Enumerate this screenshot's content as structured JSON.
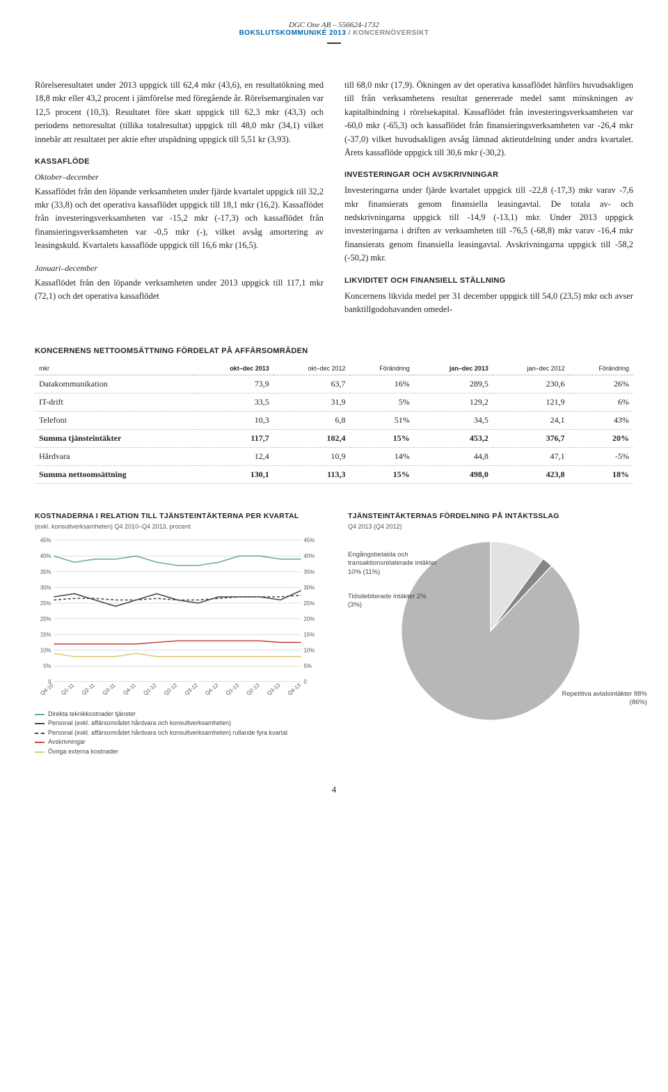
{
  "header": {
    "company": "DGC One AB – 556624-1732",
    "subtitle_blue": "BOKSLUTSKOMMUNIKÉ 2013",
    "subtitle_grey": " / KONCERNÖVERSIKT"
  },
  "col1": {
    "p1": "Rörelseresultatet under 2013 uppgick till 62,4 mkr (43,6), en resultatökning med 18,8 mkr eller 43,2 procent i jämförelse med föregående år. Rörelsemarginalen var 12,5 procent (10,3). Resultatet före skatt uppgick till 62,3 mkr (43,3) och periodens nettoresultat (tillika totalresultat) uppgick till 48,0 mkr (34,1) vilket innebär att resultatet per aktie efter utspädning uppgick till 5,51 kr (3,93).",
    "h1": "KASSAFLÖDE",
    "sub1": "Oktober–december",
    "p2": "Kassaflödet från den löpande verksamheten under fjärde kvartalet uppgick till 32,2 mkr (33,8) och det operativa kassaflödet uppgick till 18,1 mkr (16,2). Kassaflödet från investeringsverksamheten var -15,2 mkr (-17,3) och kassaflödet från finansieringsverksamheten var -0,5 mkr (-), vilket avsåg amortering av leasingskuld. Kvartalets kassaflöde uppgick till 16,6 mkr (16,5).",
    "sub2": "Januari–december",
    "p3": "Kassaflödet från den löpande verksamheten under 2013 uppgick till 117,1 mkr (72,1) och det operativa kassaflödet"
  },
  "col2": {
    "p1": "till 68,0 mkr (17,9). Ökningen av det operativa kassaflödet hänförs huvudsakligen till från verksamhetens resultat genererade medel samt minskningen av kapitalbindning i rörelsekapital. Kassaflödet från investeringsverksamheten var -60,0 mkr (-65,3) och kassaflödet från finansieringsverksamheten var -26,4 mkr (-37,0) vilket huvudsakligen avsåg lämnad aktieutdelning under andra kvartalet. Årets kassaflöde uppgick till 30,6 mkr (-30,2).",
    "h1": "INVESTERINGAR OCH AVSKRIVNINGAR",
    "p2": "Investeringarna under fjärde kvartalet uppgick till -22,8 (-17,3) mkr varav -7,6 mkr finansierats genom finansiella leasingavtal. De totala av- och nedskrivningarna uppgick till -14,9 (-13,1) mkr. Under 2013 uppgick investeringarna i driften av verksamheten till -76,5 (-68,8) mkr varav -16,4 mkr finansierats genom finansiella leasingavtal. Avskrivningarna uppgick till -58,2 (-50,2) mkr.",
    "h2": "LIKVIDITET OCH FINANSIELL STÄLLNING",
    "p3": "Koncernens likvida medel per 31 december uppgick till 54,0 (23,5) mkr och avser banktillgodohavanden omedel-"
  },
  "table": {
    "title": "KONCERNENS NETTOOMSÄTTNING FÖRDELAT PÅ AFFÄRSOMRÅDEN",
    "headers": [
      "mkr",
      "okt–dec 2013",
      "okt–dec 2012",
      "Förändring",
      "jan–dec 2013",
      "jan–dec 2012",
      "Förändring"
    ],
    "rows": [
      {
        "cells": [
          "Datakommunikation",
          "73,9",
          "63,7",
          "16%",
          "289,5",
          "230,6",
          "26%"
        ],
        "bold": false
      },
      {
        "cells": [
          "IT-drift",
          "33,5",
          "31,9",
          "5%",
          "129,2",
          "121,9",
          "6%"
        ],
        "bold": false
      },
      {
        "cells": [
          "Telefoni",
          "10,3",
          "6,8",
          "51%",
          "34,5",
          "24,1",
          "43%"
        ],
        "bold": false
      },
      {
        "cells": [
          "Summa tjänsteintäkter",
          "117,7",
          "102,4",
          "15%",
          "453,2",
          "376,7",
          "20%"
        ],
        "bold": true
      },
      {
        "cells": [
          "Hårdvara",
          "12,4",
          "10,9",
          "14%",
          "44,8",
          "47,1",
          "-5%"
        ],
        "bold": false
      },
      {
        "cells": [
          "Summa nettoomsättning",
          "130,1",
          "113,3",
          "15%",
          "498,0",
          "423,8",
          "18%"
        ],
        "bold": true
      }
    ]
  },
  "line_chart": {
    "title": "KOSTNADERNA I RELATION TILL TJÄNSTEINTÄKTERNA PER KVARTAL",
    "subtitle": "(exkl. konsultverksamheten) Q4 2010–Q4 2013, procent",
    "y_ticks": [
      "45%",
      "40%",
      "35%",
      "30%",
      "25%",
      "20%",
      "15%",
      "10%",
      "5%",
      "0"
    ],
    "x_labels": [
      "Q4-10",
      "Q1-11",
      "Q2-11",
      "Q3-11",
      "Q4-11",
      "Q1-12",
      "Q2-12",
      "Q3-12",
      "Q4-12",
      "Q1-13",
      "Q2-13",
      "Q3-13",
      "Q4-13"
    ],
    "ymax": 45,
    "series": [
      {
        "name": "Direkta teknikkostnader tjänster",
        "color": "#6aa9a0",
        "dash": "none",
        "values": [
          40,
          38,
          39,
          39,
          40,
          38,
          37,
          37,
          38,
          40,
          40,
          39,
          39
        ]
      },
      {
        "name": "Personal (exkl. affärsområdet hårdvara och konsultverksamheten)",
        "color": "#444444",
        "dash": "none",
        "values": [
          27,
          28,
          26,
          24,
          26,
          28,
          26,
          25,
          27,
          27,
          27,
          26,
          29
        ]
      },
      {
        "name": "Personal (exkl. affärsområdet hårdvara och konsultverksamheten) rullande fyra kvartal",
        "color": "#444444",
        "dash": "4,3",
        "values": [
          26,
          26.5,
          26.5,
          26,
          26,
          26.5,
          26,
          26,
          26.5,
          27,
          27,
          27,
          27.5
        ]
      },
      {
        "name": "Avskrivningar",
        "color": "#c6433f",
        "dash": "none",
        "values": [
          12,
          12,
          12,
          12,
          12,
          12.5,
          13,
          13,
          13,
          13,
          13,
          12.5,
          12.5
        ]
      },
      {
        "name": "Övriga externa kostnader",
        "color": "#d9ca77",
        "dash": "none",
        "values": [
          9,
          8,
          8,
          8,
          9,
          8,
          8,
          8,
          8,
          8,
          8,
          8,
          8
        ]
      }
    ],
    "grid_color": "#bbbbbb",
    "axis_font": 8
  },
  "pie_chart": {
    "title": "TJÄNSTEINTÄKTERNAS FÖRDELNING PÅ INTÄKTSSLAG",
    "subtitle": "Q4 2013 (Q4 2012)",
    "slices": [
      {
        "label": "Repetitiva avtalsintäkter 88% (86%)",
        "value": 88,
        "color": "#b7b7b7"
      },
      {
        "label": "Engångsbetalda och transaktionsrelaterade intäkter 10% (11%)",
        "value": 10,
        "color": "#e2e2e2"
      },
      {
        "label": "Tidsdebiterade intäkter 2% (3%)",
        "value": 2,
        "color": "#868686"
      }
    ]
  },
  "page_number": "4"
}
